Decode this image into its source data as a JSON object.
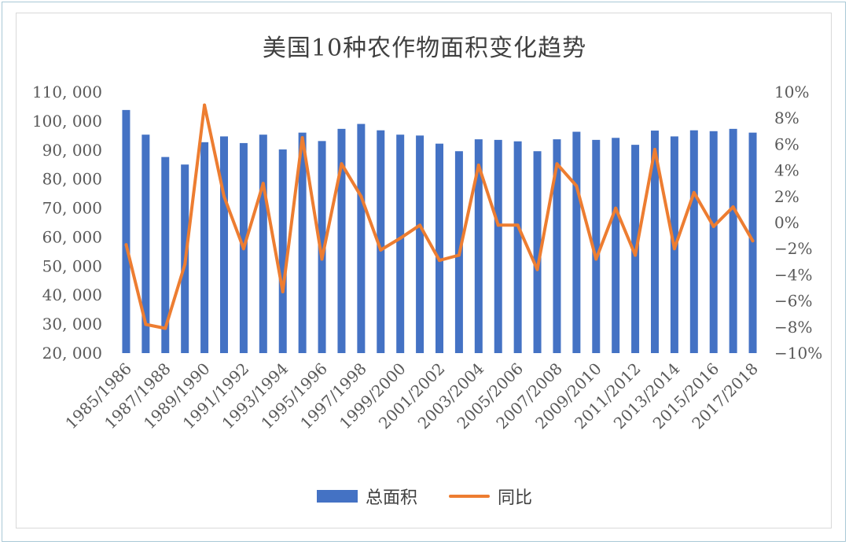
{
  "colors": {
    "bar": "#4472c4",
    "line": "#ed7d31"
  },
  "chart_data": {
    "type": "bar+line",
    "title": "美国10种农作物面积变化趋势",
    "y_left": {
      "lim": [
        20000,
        110000
      ],
      "ticks": [
        20000,
        30000,
        40000,
        50000,
        60000,
        70000,
        80000,
        90000,
        100000,
        110000
      ],
      "tick_labels": [
        "20, 000",
        "30, 000",
        "40, 000",
        "50, 000",
        "60, 000",
        "70, 000",
        "80, 000",
        "90, 000",
        "100, 000",
        "110, 000"
      ]
    },
    "y_right": {
      "lim": [
        -10,
        10
      ],
      "ticks": [
        -10,
        -8,
        -6,
        -4,
        -2,
        0,
        2,
        4,
        6,
        8,
        10
      ],
      "tick_labels": [
        "−10%",
        "−8%",
        "−6%",
        "−4%",
        "−2%",
        "0%",
        "2%",
        "4%",
        "6%",
        "8%",
        "10%"
      ]
    },
    "categories": [
      "1985/1986",
      "1986/1987",
      "1987/1988",
      "1988/1989",
      "1989/1990",
      "1990/1991",
      "1991/1992",
      "1992/1993",
      "1993/1994",
      "1994/1995",
      "1995/1996",
      "1996/1997",
      "1997/1998",
      "1998/1999",
      "1999/2000",
      "2000/2001",
      "2001/2002",
      "2002/2003",
      "2003/2004",
      "2004/2005",
      "2005/2006",
      "2006/2007",
      "2007/2008",
      "2008/2009",
      "2009/2010",
      "2010/2011",
      "2011/2012",
      "2012/2013",
      "2013/2014",
      "2014/2015",
      "2015/2016",
      "2016/2017",
      "2017/2018"
    ],
    "xtick_labels": [
      "1985/1986",
      "1987/1988",
      "1989/1990",
      "1991/1992",
      "1993/1994",
      "1995/1996",
      "1997/1998",
      "1999/2000",
      "2001/2002",
      "2003/2004",
      "2005/2006",
      "2007/2008",
      "2009/2010",
      "2011/2012",
      "2013/2014",
      "2015/2016",
      "2017/2018"
    ],
    "series": [
      {
        "name": "总面积",
        "type": "bar",
        "axis": "left",
        "values": [
          103800,
          95300,
          87600,
          85000,
          92700,
          94700,
          92400,
          95300,
          90200,
          96000,
          93100,
          97300,
          99000,
          96800,
          95300,
          95000,
          92200,
          89600,
          93700,
          93500,
          93000,
          89600,
          93700,
          96300,
          93500,
          94200,
          91800,
          96700,
          94700,
          96800,
          96500,
          97300,
          96000
        ]
      },
      {
        "name": "同比",
        "type": "line",
        "axis": "right",
        "values": [
          -1.7,
          -7.8,
          -8.1,
          -3.2,
          9.0,
          2.0,
          -2.0,
          3.0,
          -5.3,
          6.5,
          -2.8,
          4.5,
          2.0,
          -2.1,
          -1.2,
          -0.2,
          -2.9,
          -2.5,
          4.4,
          -0.2,
          -0.2,
          -3.6,
          4.5,
          2.8,
          -2.8,
          1.1,
          -2.5,
          5.6,
          -2.0,
          2.3,
          -0.3,
          1.2,
          -1.4
        ]
      }
    ],
    "legend": {
      "position": "bottom",
      "entries": [
        "总面积",
        "同比"
      ]
    }
  }
}
